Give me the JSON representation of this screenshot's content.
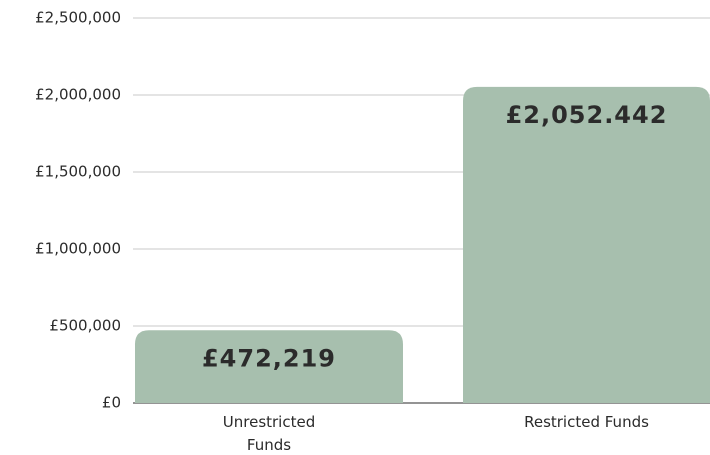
{
  "chart_data": {
    "type": "bar",
    "categories": [
      "Unrestricted Funds",
      "Restricted Funds"
    ],
    "values": [
      472219,
      2052442
    ],
    "value_labels": [
      "£472,219",
      "£2,052.442"
    ],
    "color": "#a7bfae",
    "ylim": [
      0,
      2500000
    ],
    "yticks": [
      {
        "value": 0,
        "label": "£0"
      },
      {
        "value": 500000,
        "label": "£500,000"
      },
      {
        "value": 1000000,
        "label": "£1,000,000"
      },
      {
        "value": 1500000,
        "label": "£1,500,000"
      },
      {
        "value": 2000000,
        "label": "£2,000,000"
      },
      {
        "value": 2500000,
        "label": "£2,500,000"
      }
    ],
    "grid": true
  }
}
